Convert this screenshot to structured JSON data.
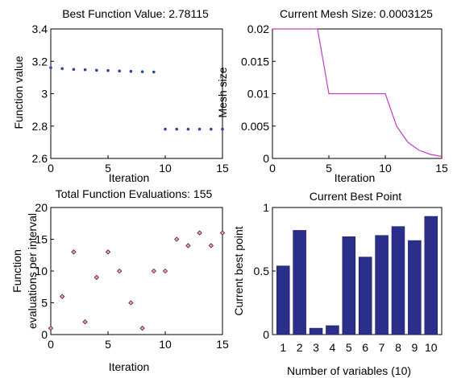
{
  "chart_data": [
    {
      "type": "scatter",
      "title": "Best Function Value: 2.78115",
      "xlabel": "Iteration",
      "ylabel": "Function value",
      "xlim": [
        0,
        15
      ],
      "ylim": [
        2.6,
        3.4
      ],
      "xticks": [
        "0",
        "5",
        "10",
        "15"
      ],
      "yticks": [
        "2.6",
        "2.8",
        "3",
        "3.2",
        "3.4"
      ],
      "marker_color": "#2a4a9c",
      "x": [
        0,
        1,
        2,
        3,
        4,
        5,
        6,
        7,
        8,
        9,
        10,
        11,
        12,
        13,
        14,
        15
      ],
      "y": [
        3.16,
        3.155,
        3.15,
        3.148,
        3.145,
        3.143,
        3.14,
        3.138,
        3.136,
        3.134,
        2.781,
        2.781,
        2.781,
        2.781,
        2.781,
        2.781
      ]
    },
    {
      "type": "line",
      "title": "Current Mesh Size: 0.0003125",
      "xlabel": "Iteration",
      "ylabel": "Mesh size",
      "xlim": [
        0,
        15
      ],
      "ylim": [
        0,
        0.02
      ],
      "xticks": [
        "0",
        "5",
        "10",
        "15"
      ],
      "yticks": [
        "0",
        "0.005",
        "0.01",
        "0.015",
        "0.02"
      ],
      "line_color": "#c040c0",
      "x": [
        0,
        1,
        2,
        3,
        4,
        5,
        6,
        7,
        8,
        9,
        10,
        11,
        12,
        13,
        14,
        15
      ],
      "y": [
        0.02,
        0.02,
        0.02,
        0.02,
        0.02,
        0.01,
        0.01,
        0.01,
        0.01,
        0.01,
        0.01,
        0.005,
        0.0025,
        0.00125,
        0.000625,
        0.0003125
      ]
    },
    {
      "type": "scatter",
      "title": "Total Function Evaluations: 155",
      "xlabel": "Iteration",
      "ylabel": "Function evaluations per interval",
      "xlim": [
        0,
        15
      ],
      "ylim": [
        0,
        20
      ],
      "xticks": [
        "0",
        "5",
        "10",
        "15"
      ],
      "yticks": [
        "0",
        "5",
        "10",
        "15",
        "20"
      ],
      "marker_color": "#c03070",
      "x": [
        0,
        1,
        2,
        3,
        4,
        5,
        6,
        7,
        8,
        9,
        10,
        11,
        12,
        13,
        14,
        15
      ],
      "y": [
        1,
        6,
        13,
        2,
        9,
        13,
        10,
        5,
        1,
        10,
        10,
        15,
        14,
        16,
        14,
        16
      ]
    },
    {
      "type": "bar",
      "title": "Current Best Point",
      "xlabel": "Number of variables (10)",
      "ylabel": "Current best point",
      "ylim": [
        0,
        1
      ],
      "yticks": [
        "0",
        "0.5",
        "1"
      ],
      "bar_color": "#2b2f8c",
      "categories": [
        "1",
        "2",
        "3",
        "4",
        "5",
        "6",
        "7",
        "8",
        "9",
        "10"
      ],
      "values": [
        0.54,
        0.82,
        0.05,
        0.07,
        0.77,
        0.61,
        0.78,
        0.85,
        0.74,
        0.93
      ]
    }
  ]
}
